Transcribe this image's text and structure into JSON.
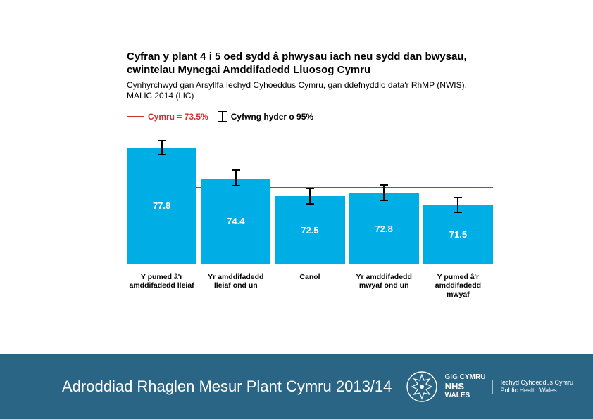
{
  "title": "Cyfran y plant 4 i 5 oed sydd â phwysau iach neu sydd dan bwysau, cwintelau Mynegai Amddifadedd Lluosog Cymru",
  "subtitle": "Cynhyrchwyd gan Arsyllfa Iechyd Cyhoeddus Cymru, gan ddefnyddio data'r RhMP (NWIS), MALlC 2014 (LlC)",
  "legend": {
    "ref_label": "Cymru = 73.5%",
    "ci_label": "Cyfwng hyder o 95%"
  },
  "chart": {
    "type": "bar",
    "reference_value": 73.5,
    "ylim_min": 65,
    "ylim_max": 80,
    "bar_color": "#00aee6",
    "reference_line_color": "#d32f2f",
    "value_text_color": "#ffffff",
    "ci_whisker_color": "#000000",
    "background_color": "#ffffff",
    "value_fontsize": 13,
    "xlabel_fontsize": 10.5,
    "bars": [
      {
        "label": "Y pumed â'r amddifadedd lleiaf",
        "value": 77.8,
        "ci_low": 77.0,
        "ci_high": 78.6
      },
      {
        "label": "Yr amddifadedd lleiaf ond un",
        "value": 74.4,
        "ci_low": 73.6,
        "ci_high": 75.3
      },
      {
        "label": "Canol",
        "value": 72.5,
        "ci_low": 71.6,
        "ci_high": 73.3
      },
      {
        "label": "Yr amddifadedd mwyaf ond un",
        "value": 72.8,
        "ci_low": 72.0,
        "ci_high": 73.7
      },
      {
        "label": "Y pumed â'r amddifadedd mwyaf",
        "value": 71.5,
        "ci_low": 70.7,
        "ci_high": 72.3
      }
    ]
  },
  "footer": {
    "report_title": "Adroddiad Rhaglen Mesur Plant Cymru 2013/14",
    "logo": {
      "top_cy": "GIG",
      "top_en": "NHS",
      "brand_cy": "CYMRU",
      "brand_en": "WALES",
      "org_cy": "Iechyd Cyhoeddus Cymru",
      "org_en": "Public Health Wales"
    }
  },
  "colors": {
    "footer_bg": "#2a6585",
    "text_black": "#000000",
    "text_white": "#ffffff"
  }
}
